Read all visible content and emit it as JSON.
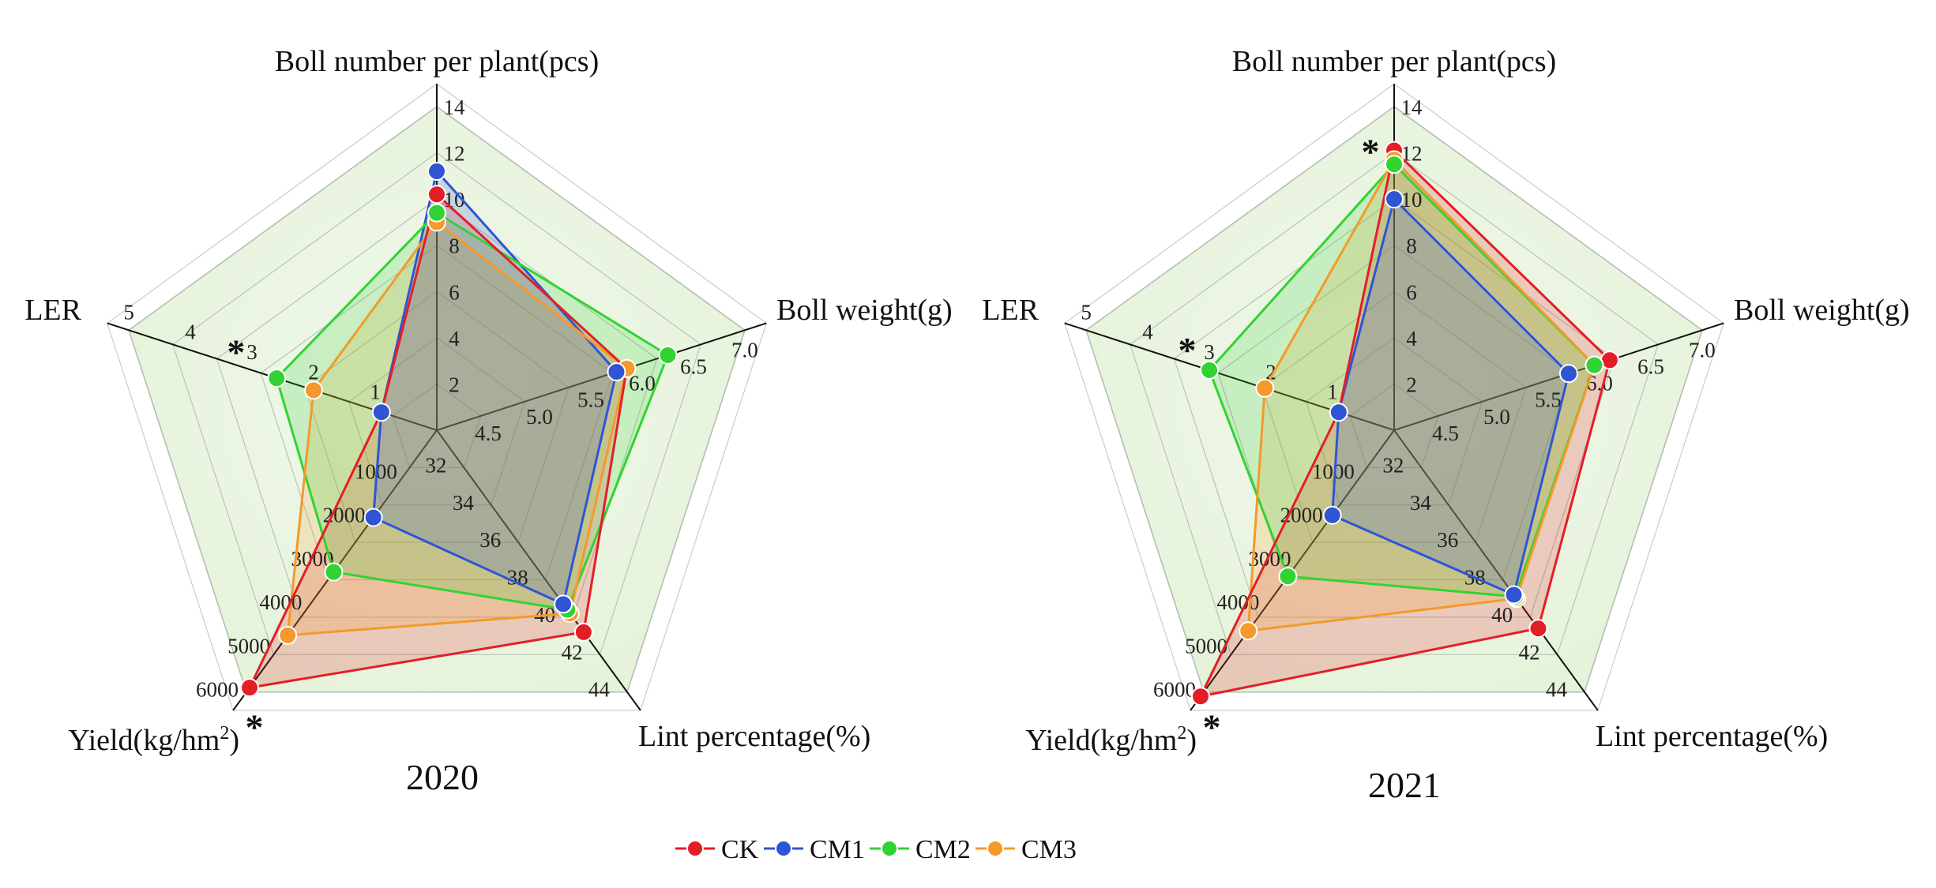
{
  "legend": [
    {
      "name": "CK",
      "color": "#e41e26"
    },
    {
      "name": "CM1",
      "color": "#2f55d4"
    },
    {
      "name": "CM2",
      "color": "#33d233"
    },
    {
      "name": "CM3",
      "color": "#f39a2a"
    }
  ],
  "chart_data": [
    {
      "type": "radar",
      "title": "2020",
      "axes": [
        {
          "label": "Boll number per plant(pcs)",
          "range": [
            0,
            14
          ],
          "ticks": [
            "2",
            "4",
            "6",
            "8",
            "10",
            "12",
            "14"
          ]
        },
        {
          "label": "Boll weight(g)",
          "range": [
            4.0,
            7.0
          ],
          "ticks": [
            "4.5",
            "5.0",
            "5.5",
            "6.0",
            "6.5",
            "7.0"
          ]
        },
        {
          "label": "Lint percentage(%)",
          "range": [
            30,
            44
          ],
          "ticks": [
            "32",
            "34",
            "36",
            "38",
            "40",
            "42",
            "44"
          ]
        },
        {
          "label": "Yield(kg/hm",
          "label_sup": "2",
          "label_end": ")",
          "range": [
            0,
            6000
          ],
          "ticks": [
            "1000",
            "2000",
            "3000",
            "4000",
            "5000",
            "6000"
          ]
        },
        {
          "label": "LER",
          "range": [
            0,
            5
          ],
          "ticks": [
            "1",
            "2",
            "3",
            "4",
            "5"
          ]
        }
      ],
      "series": [
        {
          "name": "CK",
          "values": [
            10.2,
            5.85,
            40.8,
            5900,
            0.9
          ]
        },
        {
          "name": "CM1",
          "values": [
            11.2,
            5.75,
            39.3,
            2000,
            0.9
          ]
        },
        {
          "name": "CM2",
          "values": [
            9.4,
            6.25,
            39.6,
            3250,
            2.6
          ]
        },
        {
          "name": "CM3",
          "values": [
            9.0,
            5.85,
            39.8,
            4700,
            2.0
          ]
        }
      ],
      "significance": [
        {
          "axis": "LER",
          "value": 2.9,
          "symbol": "*"
        },
        {
          "axis": "Yield",
          "value": 6000,
          "symbol": "*"
        }
      ]
    },
    {
      "type": "radar",
      "title": "2021",
      "axes": [
        {
          "label": "Boll number per plant(pcs)",
          "range": [
            0,
            14
          ],
          "ticks": [
            "2",
            "4",
            "6",
            "8",
            "10",
            "12",
            "14"
          ]
        },
        {
          "label": "Boll weight(g)",
          "range": [
            4.0,
            7.0
          ],
          "ticks": [
            "4.5",
            "5.0",
            "5.5",
            "6.0",
            "6.5",
            "7.0"
          ]
        },
        {
          "label": "Lint percentage(%)",
          "range": [
            30,
            44
          ],
          "ticks": [
            "32",
            "34",
            "36",
            "38",
            "40",
            "42",
            "44"
          ]
        },
        {
          "label": "Yield(kg/hm",
          "label_sup": "2",
          "label_end": ")",
          "range": [
            0,
            6000
          ],
          "ticks": [
            "1000",
            "2000",
            "3000",
            "4000",
            "5000",
            "6000"
          ]
        },
        {
          "label": "LER",
          "range": [
            0,
            5
          ],
          "ticks": [
            "1",
            "2",
            "3",
            "4",
            "5"
          ]
        }
      ],
      "series": [
        {
          "name": "CK",
          "values": [
            12.1,
            6.1,
            40.6,
            6100,
            0.9
          ]
        },
        {
          "name": "CM1",
          "values": [
            10.0,
            5.7,
            38.8,
            1950,
            0.9
          ]
        },
        {
          "name": "CM2",
          "values": [
            11.5,
            5.95,
            38.9,
            3350,
            3.0
          ]
        },
        {
          "name": "CM3",
          "values": [
            11.7,
            5.95,
            39.0,
            4600,
            2.1
          ]
        }
      ],
      "significance": [
        {
          "axis": "Boll number per plant(pcs)",
          "value": 12.0,
          "symbol": "*"
        },
        {
          "axis": "LER",
          "value": 3.0,
          "symbol": "*"
        },
        {
          "axis": "Yield",
          "value": 6000,
          "symbol": "*"
        }
      ]
    }
  ]
}
